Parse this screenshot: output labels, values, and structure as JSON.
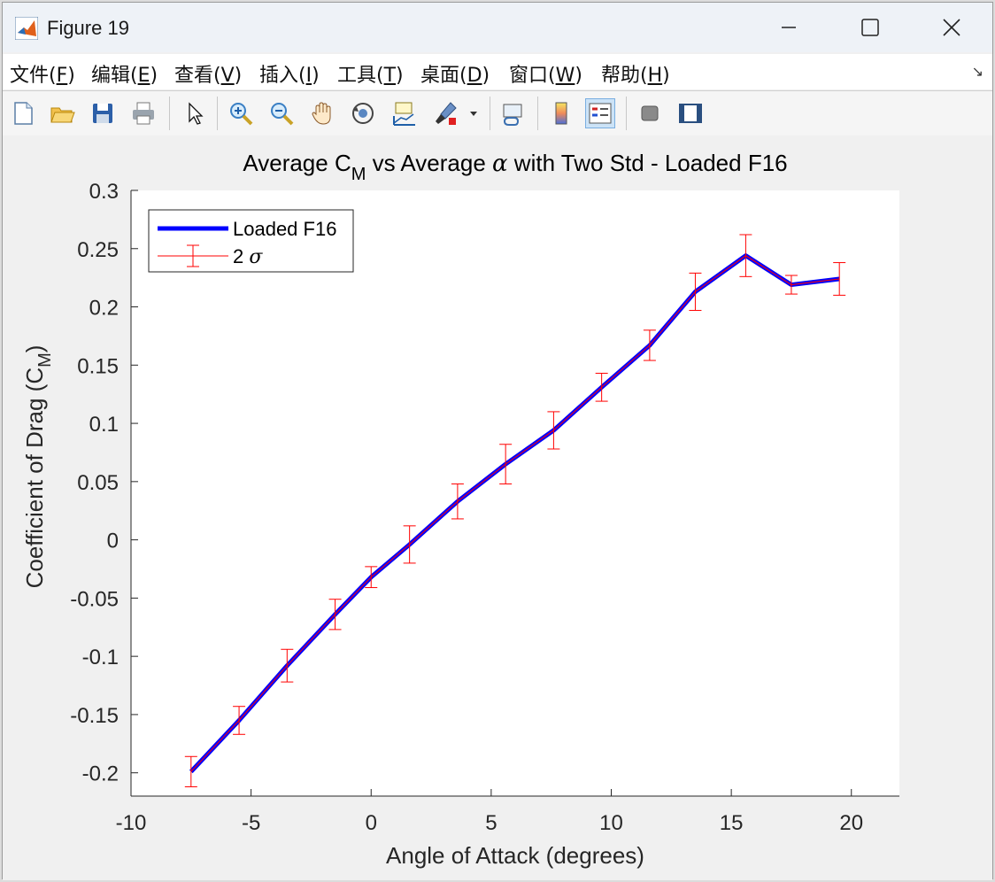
{
  "window": {
    "title": "Figure 19"
  },
  "menu": [
    {
      "pre": "文件(",
      "key": "F",
      "post": ")"
    },
    {
      "pre": "编辑(",
      "key": "E",
      "post": ")"
    },
    {
      "pre": "查看(",
      "key": "V",
      "post": ")"
    },
    {
      "pre": "插入(",
      "key": "I",
      "post": ")"
    },
    {
      "pre": "工具(",
      "key": "T",
      "post": ")"
    },
    {
      "pre": "桌面(",
      "key": "D",
      "post": ")"
    },
    {
      "pre": "窗口(",
      "key": "W",
      "post": ")"
    },
    {
      "pre": "帮助(",
      "key": "H",
      "post": ")"
    }
  ],
  "toolbar_icons": [
    "new-file-icon",
    "open-folder-icon",
    "save-icon",
    "print-icon",
    "pointer-icon",
    "zoom-in-icon",
    "zoom-out-icon",
    "pan-hand-icon",
    "rotate-3d-icon",
    "data-cursor-icon",
    "brush-icon",
    "link-plot-icon",
    "colorbar-icon",
    "legend-icon",
    "hide-plot-tools-icon",
    "show-plot-tools-icon"
  ],
  "chart_data": {
    "type": "line",
    "title_parts": {
      "t1": "Average C",
      "sub1": "M",
      "t2": " vs Average ",
      "greek": "α",
      "t3": " with Two Std - Loaded F16"
    },
    "xlabel": "Angle of Attack (degrees)",
    "ylabel_parts": {
      "t1": "Coefficient of Drag (C",
      "sub": "M",
      "t2": ")"
    },
    "xlim": [
      -10,
      22
    ],
    "ylim": [
      -0.22,
      0.3
    ],
    "xticks": [
      -10,
      -5,
      0,
      5,
      10,
      15,
      20
    ],
    "xtick_labels": [
      "-10",
      "-5",
      "0",
      "5",
      "10",
      "15",
      "20"
    ],
    "yticks": [
      -0.2,
      -0.15,
      -0.1,
      -0.05,
      0,
      0.05,
      0.1,
      0.15,
      0.2,
      0.25,
      0.3
    ],
    "ytick_labels": [
      "-0.2",
      "-0.15",
      "-0.1",
      "-0.05",
      "0",
      "0.05",
      "0.1",
      "0.15",
      "0.2",
      "0.25",
      "0.3"
    ],
    "grid": false,
    "legend_position": "top-left",
    "series": [
      {
        "name": "Loaded F16",
        "color": "#0000ff",
        "x": [
          -7.5,
          -5.5,
          -3.5,
          -1.5,
          0.0,
          1.6,
          3.6,
          5.6,
          7.6,
          9.6,
          11.6,
          13.5,
          15.6,
          17.5,
          19.5
        ],
        "y": [
          -0.199,
          -0.155,
          -0.108,
          -0.064,
          -0.032,
          -0.004,
          0.033,
          0.065,
          0.094,
          0.131,
          0.167,
          0.213,
          0.244,
          0.219,
          0.224
        ]
      }
    ],
    "error_series": {
      "name_parts": {
        "t1": "2 ",
        "greek": "σ"
      },
      "color": "#ff0000",
      "err": [
        0.013,
        0.012,
        0.014,
        0.013,
        0.009,
        0.016,
        0.015,
        0.017,
        0.016,
        0.012,
        0.013,
        0.016,
        0.018,
        0.008,
        0.014
      ]
    }
  }
}
